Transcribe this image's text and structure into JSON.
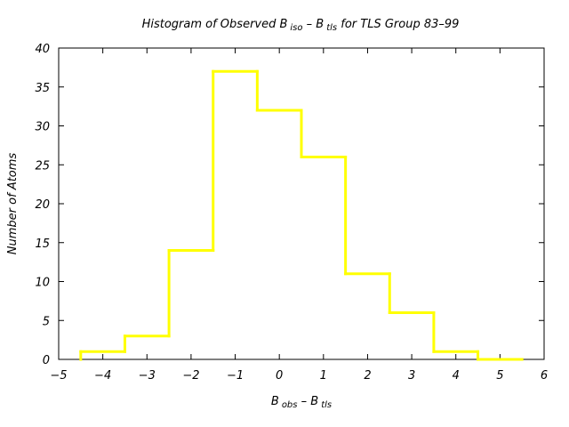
{
  "chart_data": {
    "type": "bar",
    "title": {
      "prefix": "Histogram of Observed B",
      "sub1": "iso",
      "mid": " – B",
      "sub2": "tls",
      "suffix": "  for TLS Group 83–99"
    },
    "xlabel": {
      "main1": "B",
      "sub1": "obs",
      "mid": " – B",
      "sub2": "tls"
    },
    "ylabel": "Number of Atoms",
    "xlim": [
      -5,
      6
    ],
    "ylim": [
      0,
      40
    ],
    "xticks": [
      -5,
      -4,
      -3,
      -2,
      -1,
      0,
      1,
      2,
      3,
      4,
      5,
      6
    ],
    "yticks": [
      0,
      5,
      10,
      15,
      20,
      25,
      30,
      35,
      40
    ],
    "bin_edges": [
      -4.5,
      -3.5,
      -2.5,
      -1.5,
      -0.5,
      0.5,
      1.5,
      2.5,
      3.5,
      4.5,
      5.5
    ],
    "values": [
      1,
      3,
      14,
      37,
      32,
      26,
      11,
      6,
      1,
      0
    ],
    "line_color": "#ffff00",
    "grid": false
  }
}
